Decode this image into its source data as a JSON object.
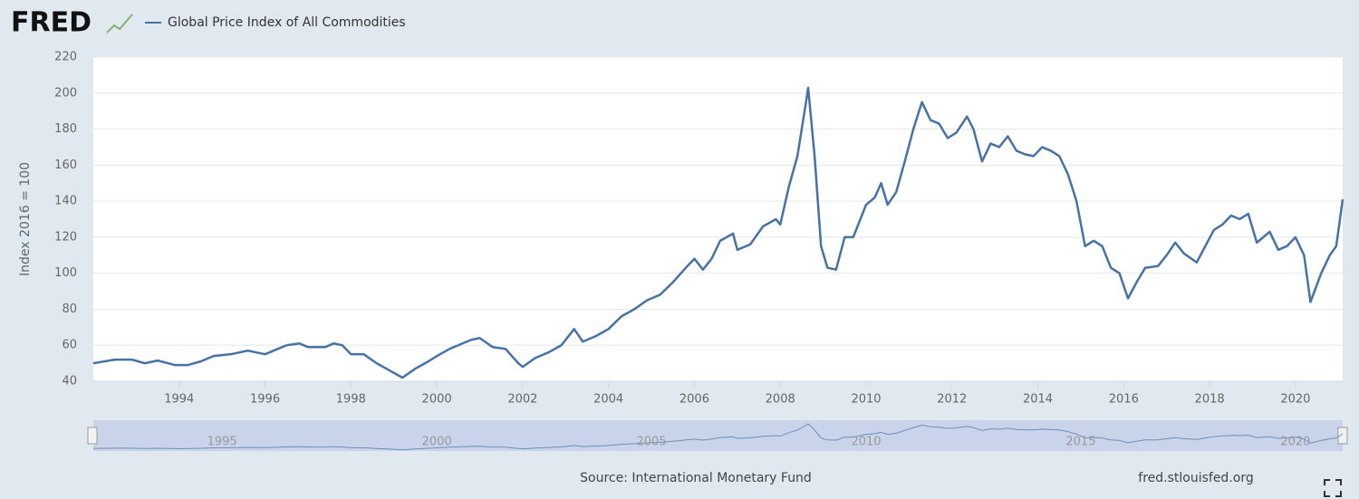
{
  "brand": "FRED",
  "chart_data": {
    "type": "line",
    "ylabel": "Index 2016 = 100",
    "source": "Source: International Monetary Fund",
    "site": "fred.stlouisfed.org",
    "xlim": [
      1992,
      2021.1
    ],
    "xticks": [
      1994,
      1996,
      1998,
      2000,
      2002,
      2004,
      2006,
      2008,
      2010,
      2012,
      2014,
      2016,
      2018,
      2020
    ],
    "ylim": [
      40,
      220
    ],
    "yticks": [
      40,
      60,
      80,
      100,
      120,
      140,
      160,
      180,
      200,
      220
    ],
    "grid": true,
    "navigator_ticks": [
      1995,
      2000,
      2005,
      2010,
      2015,
      2020
    ],
    "x": [
      1992.0,
      1992.5,
      1992.9,
      1993.2,
      1993.5,
      1993.9,
      1994.2,
      1994.5,
      1994.8,
      1995.2,
      1995.6,
      1996.0,
      1996.3,
      1996.5,
      1996.8,
      1997.0,
      1997.4,
      1997.6,
      1997.8,
      1998.0,
      1998.3,
      1998.6,
      1998.9,
      1999.2,
      1999.5,
      1999.8,
      2000.0,
      2000.3,
      2000.5,
      2000.8,
      2001.0,
      2001.3,
      2001.6,
      2001.9,
      2002.0,
      2002.3,
      2002.6,
      2002.9,
      2003.2,
      2003.4,
      2003.7,
      2004.0,
      2004.3,
      2004.6,
      2004.9,
      2005.2,
      2005.5,
      2005.8,
      2006.0,
      2006.2,
      2006.4,
      2006.6,
      2006.9,
      2007.0,
      2007.3,
      2007.6,
      2007.9,
      2008.0,
      2008.2,
      2008.4,
      2008.6,
      2008.65,
      2008.8,
      2008.95,
      2009.1,
      2009.3,
      2009.5,
      2009.7,
      2009.9,
      2010.0,
      2010.2,
      2010.35,
      2010.5,
      2010.7,
      2010.9,
      2011.1,
      2011.3,
      2011.5,
      2011.7,
      2011.9,
      2012.1,
      2012.35,
      2012.5,
      2012.7,
      2012.9,
      2013.1,
      2013.3,
      2013.5,
      2013.7,
      2013.9,
      2014.1,
      2014.3,
      2014.5,
      2014.7,
      2014.9,
      2015.1,
      2015.3,
      2015.5,
      2015.7,
      2015.9,
      2016.1,
      2016.3,
      2016.5,
      2016.8,
      2017.0,
      2017.2,
      2017.4,
      2017.7,
      2017.9,
      2018.1,
      2018.3,
      2018.5,
      2018.7,
      2018.9,
      2019.1,
      2019.4,
      2019.6,
      2019.8,
      2020.0,
      2020.2,
      2020.35,
      2020.6,
      2020.8,
      2020.95,
      2021.1
    ],
    "series": [
      {
        "name": "Global Price Index of All Commodities",
        "color": "#4572a7",
        "values": [
          50,
          52,
          52,
          50,
          51.5,
          49,
          49,
          51,
          54,
          55,
          57,
          55,
          58,
          60,
          61,
          59,
          59,
          61,
          60,
          55,
          55,
          50,
          46,
          42,
          47,
          51,
          54,
          58,
          60,
          63,
          64,
          59,
          58,
          50,
          48,
          53,
          56,
          60,
          69,
          62,
          65,
          69,
          76,
          80,
          85,
          88,
          95,
          103,
          108,
          102,
          108,
          118,
          122,
          113,
          116,
          126,
          130,
          127,
          148,
          165,
          195,
          203,
          165,
          115,
          103,
          102,
          120,
          120,
          132,
          138,
          142,
          150,
          138,
          145,
          162,
          180,
          195,
          185,
          183,
          175,
          178,
          187,
          180,
          162,
          172,
          170,
          176,
          168,
          166,
          165,
          170,
          168,
          165,
          155,
          140,
          115,
          118,
          115,
          103,
          100,
          86,
          95,
          103,
          104,
          110,
          117,
          111,
          106,
          115,
          124,
          127,
          132,
          130,
          133,
          117,
          123,
          113,
          115,
          120,
          110,
          84,
          100,
          110,
          115,
          141
        ]
      }
    ]
  }
}
